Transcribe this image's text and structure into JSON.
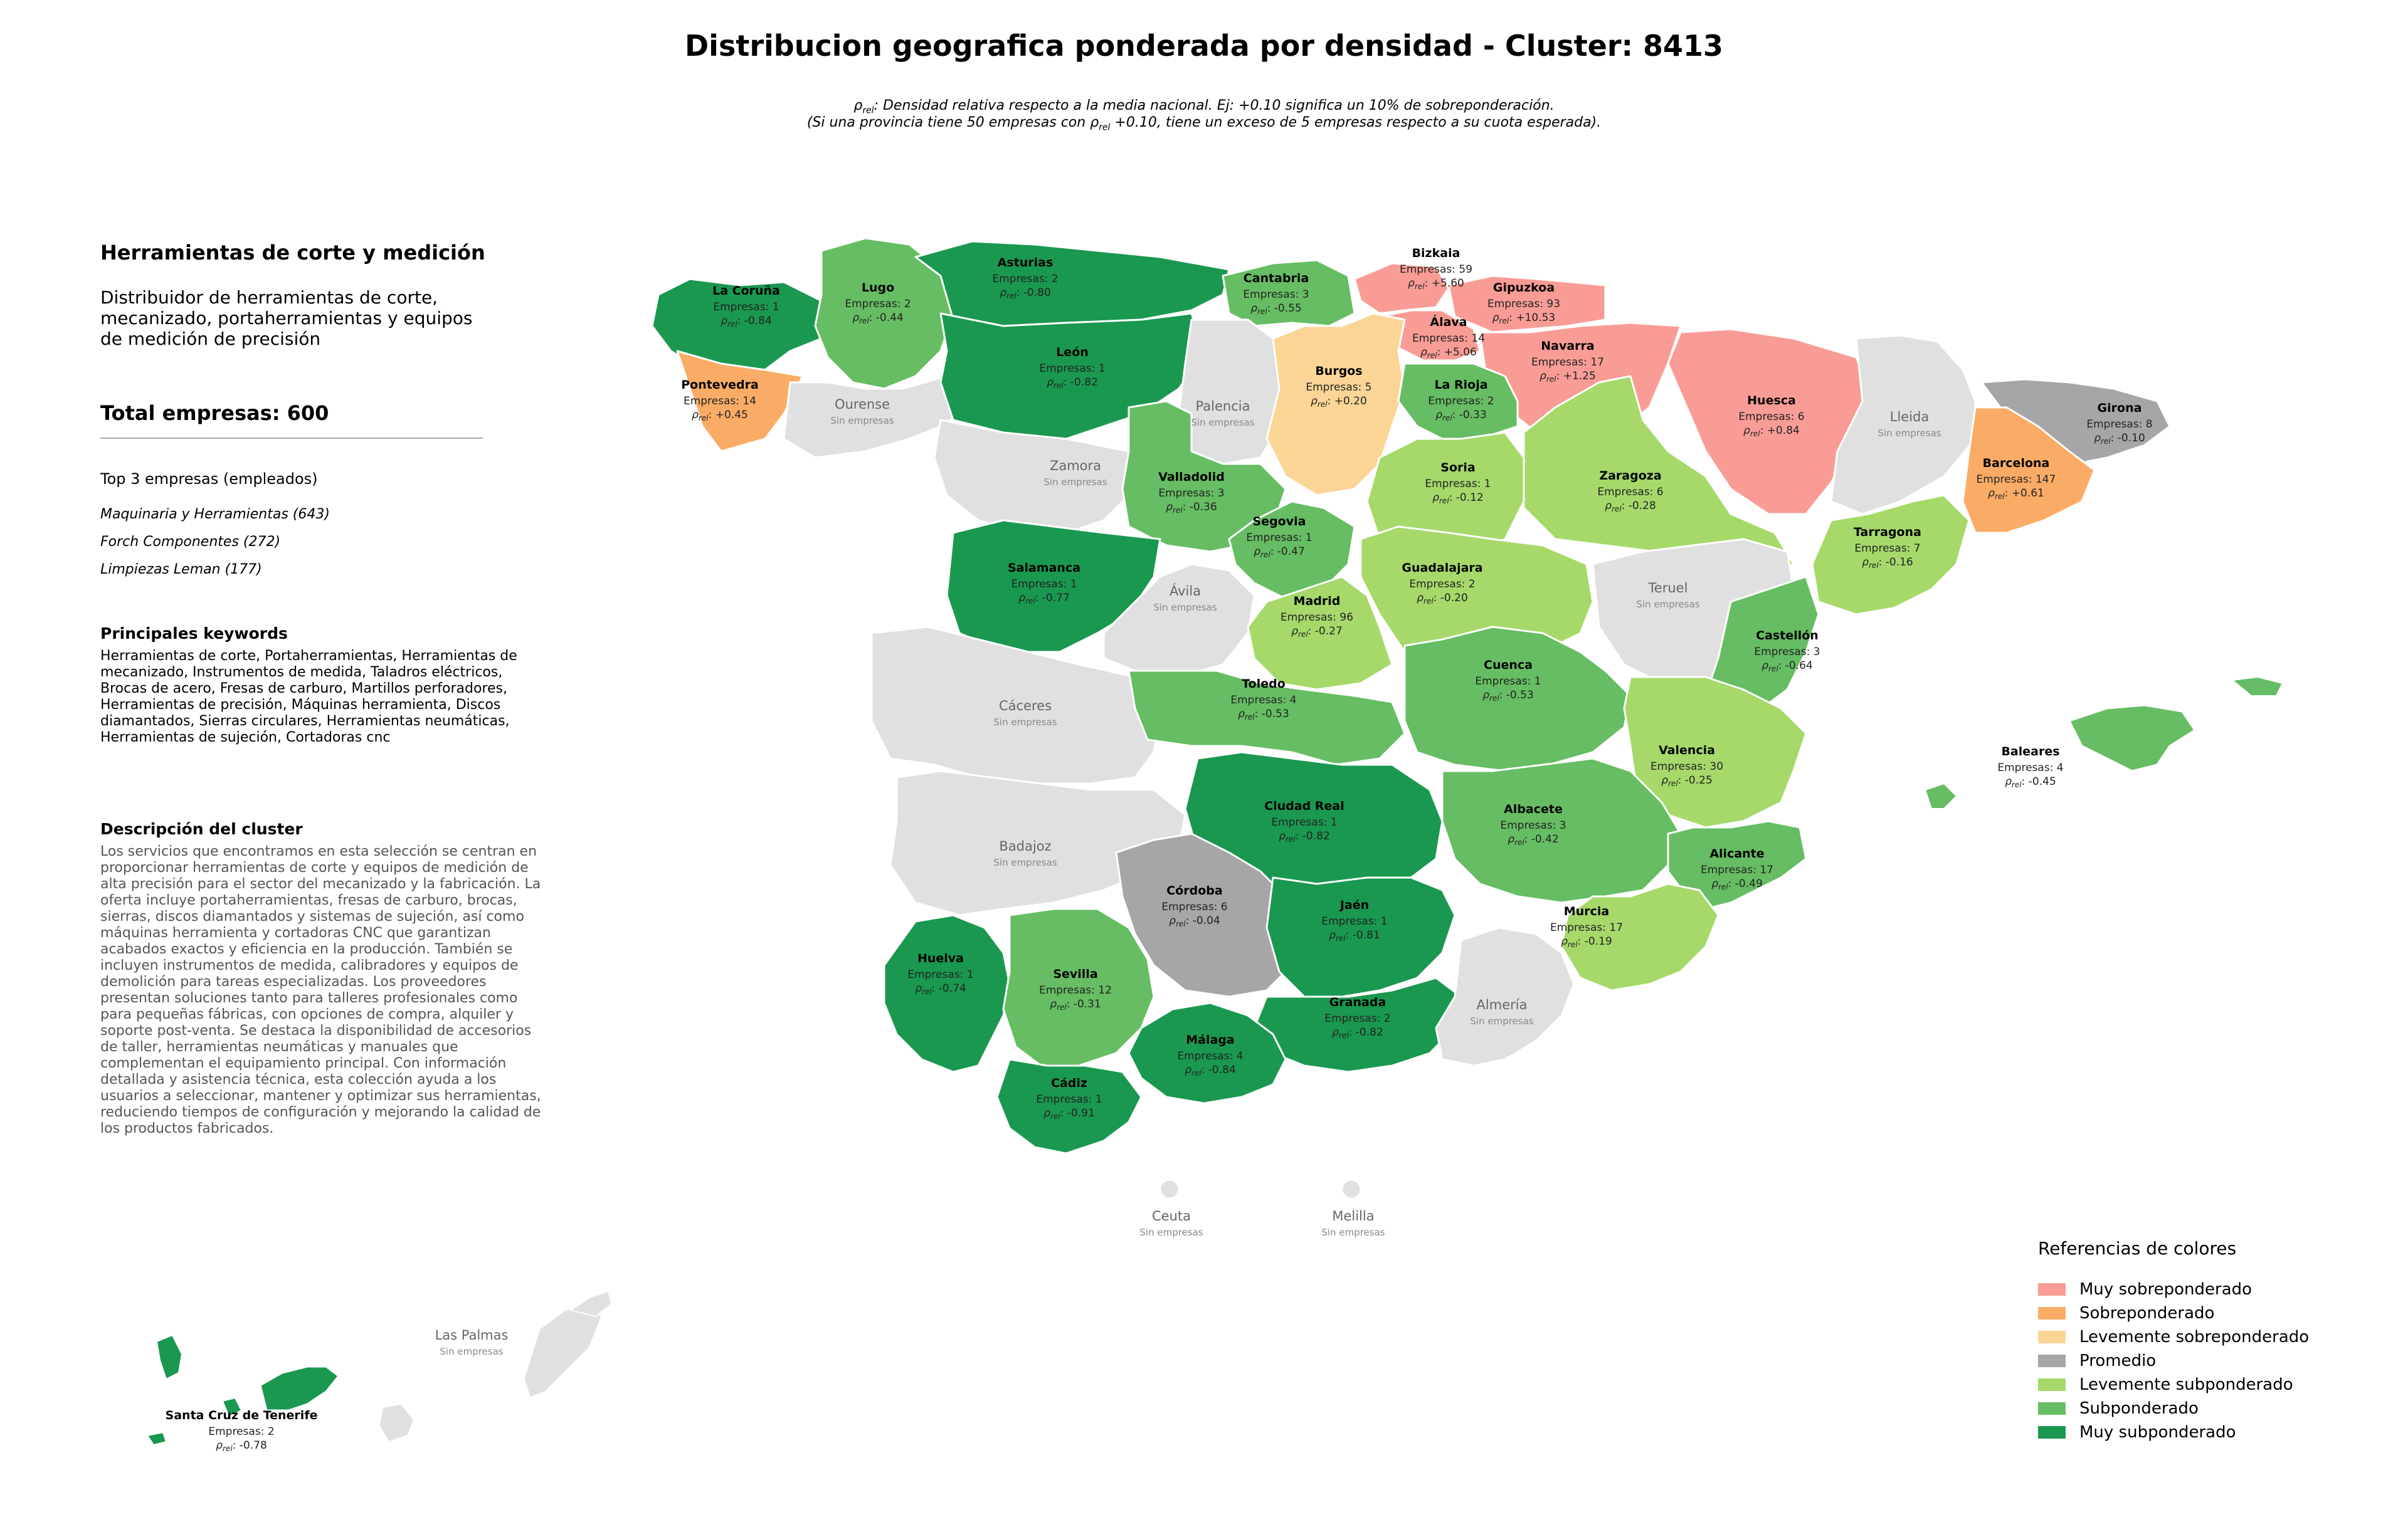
{
  "title": "Distribucion geografica ponderada por densidad - Cluster: 8413",
  "subtitle_line1": "ρrel: Densidad relativa respecto a la media nacional. Ej: +0.10 significa un 10% de sobreponderación.",
  "subtitle_line2": "(Si una provincia tiene 50 empresas con ρrel +0.10, tiene un exceso de 5 empresas respecto a su cuota esperada).",
  "sidebar": {
    "cluster_name": "Herramientas de corte y medición",
    "cluster_desc": "Distribuidor de herramientas de corte,\nmecanizado, portaherramientas y equipos\nde medición de precisión",
    "total": "Total empresas: 600",
    "top3_title": "Top 3 empresas (empleados)",
    "top3": [
      "Maquinaria y Herramientas (643)",
      "Forch Componentes (272)",
      "Limpiezas Leman (177)"
    ],
    "keywords_title": "Principales keywords",
    "keywords": "Herramientas de corte, Portaherramientas, Herramientas de mecanizado, Instrumentos de medida, Taladros eléctricos, Brocas de acero, Fresas de carburo, Martillos perforadores, Herramientas de precisión, Máquinas herramienta, Discos diamantados, Sierras circulares, Herramientas neumáticas, Herramientas de sujeción, Cortadoras cnc",
    "description_title": "Descripción del cluster",
    "description": "Los servicios que encontramos en esta selección se centran en proporcionar herramientas de corte y equipos de medición de alta precisión para el sector del mecanizado y la fabricación. La oferta incluye portaherramientas, fresas de carburo, brocas, sierras, discos diamantados y sistemas de sujeción, así como máquinas herramienta y cortadoras CNC que garantizan acabados exactos y eficiencia en la producción. También se incluyen instrumentos de medida, calibradores y equipos de demolición para tareas especializadas. Los proveedores presentan soluciones tanto para talleres profesionales como para pequeñas fábricas, con opciones de compra, alquiler y soporte post-venta. Se destaca la disponibilidad de accesorios de taller, herramientas neumáticas y manuales que complementan el equipamiento principal. Con información detallada y asistencia técnica, esta colección ayuda a los usuarios a seleccionar, mantener y optimizar sus herramientas, reduciendo tiempos de configuración y mejorando la calidad de los productos fabricados."
  },
  "colors": {
    "muy_sobre": "#f99c96",
    "sobre": "#faac66",
    "lev_sobre": "#fbd595",
    "promedio": "#a6a6a6",
    "lev_sub": "#a6d96a",
    "sub": "#66bd63",
    "muy_sub": "#1a9850",
    "sin": "#e0e0e0"
  },
  "legend": {
    "title": "Referencias de colores",
    "items": [
      {
        "label": "Muy sobreponderado",
        "color": "#f99c96"
      },
      {
        "label": "Sobreponderado",
        "color": "#faac66"
      },
      {
        "label": "Levemente sobreponderado",
        "color": "#fbd595"
      },
      {
        "label": "Promedio",
        "color": "#a6a6a6"
      },
      {
        "label": "Levemente subponderado",
        "color": "#a6d96a"
      },
      {
        "label": "Subponderado",
        "color": "#66bd63"
      },
      {
        "label": "Muy subponderado",
        "color": "#1a9850"
      }
    ]
  },
  "provinces": [
    {
      "name": "La Coruña",
      "empresas": "Empresas: 1",
      "rho": "-0.84",
      "category": "muy_sub"
    },
    {
      "name": "Lugo",
      "empresas": "Empresas: 2",
      "rho": "-0.44",
      "category": "sub"
    },
    {
      "name": "Asturias",
      "empresas": "Empresas: 2",
      "rho": "-0.80",
      "category": "muy_sub"
    },
    {
      "name": "Cantabria",
      "empresas": "Empresas: 3",
      "rho": "-0.55",
      "category": "sub"
    },
    {
      "name": "Bizkaia",
      "empresas": "Empresas: 59",
      "rho": "+5.60",
      "category": "muy_sobre"
    },
    {
      "name": "Gipuzkoa",
      "empresas": "Empresas: 93",
      "rho": "+10.53",
      "category": "muy_sobre"
    },
    {
      "name": "Álava",
      "empresas": "Empresas: 14",
      "rho": "+5.06",
      "category": "muy_sobre"
    },
    {
      "name": "Navarra",
      "empresas": "Empresas: 17",
      "rho": "+1.25",
      "category": "muy_sobre"
    },
    {
      "name": "Pontevedra",
      "empresas": "Empresas: 14",
      "rho": "+0.45",
      "category": "sobre"
    },
    {
      "name": "Ourense",
      "empty": true,
      "category": "sin"
    },
    {
      "name": "León",
      "empresas": "Empresas: 1",
      "rho": "-0.82",
      "category": "muy_sub"
    },
    {
      "name": "Palencia",
      "empty": true,
      "category": "sin"
    },
    {
      "name": "Burgos",
      "empresas": "Empresas: 5",
      "rho": "+0.20",
      "category": "lev_sobre"
    },
    {
      "name": "La Rioja",
      "empresas": "Empresas: 2",
      "rho": "-0.33",
      "category": "sub"
    },
    {
      "name": "Huesca",
      "empresas": "Empresas: 6",
      "rho": "+0.84",
      "category": "muy_sobre"
    },
    {
      "name": "Lleida",
      "empty": true,
      "category": "sin"
    },
    {
      "name": "Girona",
      "empresas": "Empresas: 8",
      "rho": "-0.10",
      "category": "promedio"
    },
    {
      "name": "Barcelona",
      "empresas": "Empresas: 147",
      "rho": "+0.61",
      "category": "sobre"
    },
    {
      "name": "Zamora",
      "empty": true,
      "category": "sin"
    },
    {
      "name": "Valladolid",
      "empresas": "Empresas: 3",
      "rho": "-0.36",
      "category": "sub"
    },
    {
      "name": "Soria",
      "empresas": "Empresas: 1",
      "rho": "-0.12",
      "category": "lev_sub"
    },
    {
      "name": "Zaragoza",
      "empresas": "Empresas: 6",
      "rho": "-0.28",
      "category": "lev_sub"
    },
    {
      "name": "Tarragona",
      "empresas": "Empresas: 7",
      "rho": "-0.16",
      "category": "lev_sub"
    },
    {
      "name": "Segovia",
      "empresas": "Empresas: 1",
      "rho": "-0.47",
      "category": "sub"
    },
    {
      "name": "Salamanca",
      "empresas": "Empresas: 1",
      "rho": "-0.77",
      "category": "muy_sub"
    },
    {
      "name": "Ávila",
      "empty": true,
      "category": "sin"
    },
    {
      "name": "Guadalajara",
      "empresas": "Empresas: 2",
      "rho": "-0.20",
      "category": "lev_sub"
    },
    {
      "name": "Madrid",
      "empresas": "Empresas: 96",
      "rho": "-0.27",
      "category": "lev_sub"
    },
    {
      "name": "Teruel",
      "empty": true,
      "category": "sin"
    },
    {
      "name": "Castellón",
      "empresas": "Empresas: 3",
      "rho": "-0.64",
      "category": "sub"
    },
    {
      "name": "Cáceres",
      "empty": true,
      "category": "sin"
    },
    {
      "name": "Toledo",
      "empresas": "Empresas: 4",
      "rho": "-0.53",
      "category": "sub"
    },
    {
      "name": "Cuenca",
      "empresas": "Empresas: 1",
      "rho": "-0.53",
      "category": "sub"
    },
    {
      "name": "Valencia",
      "empresas": "Empresas: 30",
      "rho": "-0.25",
      "category": "lev_sub"
    },
    {
      "name": "Baleares",
      "empresas": "Empresas: 4",
      "rho": "-0.45",
      "category": "sub"
    },
    {
      "name": "Badajoz",
      "empty": true,
      "category": "sin"
    },
    {
      "name": "Ciudad Real",
      "empresas": "Empresas: 1",
      "rho": "-0.82",
      "category": "muy_sub"
    },
    {
      "name": "Albacete",
      "empresas": "Empresas: 3",
      "rho": "-0.42",
      "category": "sub"
    },
    {
      "name": "Alicante",
      "empresas": "Empresas: 17",
      "rho": "-0.49",
      "category": "sub"
    },
    {
      "name": "Córdoba",
      "empresas": "Empresas: 6",
      "rho": "-0.04",
      "category": "promedio"
    },
    {
      "name": "Jaén",
      "empresas": "Empresas: 1",
      "rho": "-0.81",
      "category": "muy_sub"
    },
    {
      "name": "Murcia",
      "empresas": "Empresas: 17",
      "rho": "-0.19",
      "category": "lev_sub"
    },
    {
      "name": "Huelva",
      "empresas": "Empresas: 1",
      "rho": "-0.74",
      "category": "muy_sub"
    },
    {
      "name": "Sevilla",
      "empresas": "Empresas: 12",
      "rho": "-0.31",
      "category": "sub"
    },
    {
      "name": "Granada",
      "empresas": "Empresas: 2",
      "rho": "-0.82",
      "category": "muy_sub"
    },
    {
      "name": "Almería",
      "empty": true,
      "category": "sin"
    },
    {
      "name": "Málaga",
      "empresas": "Empresas: 4",
      "rho": "-0.84",
      "category": "muy_sub"
    },
    {
      "name": "Cádiz",
      "empresas": "Empresas: 1",
      "rho": "-0.91",
      "category": "muy_sub"
    },
    {
      "name": "Ceuta",
      "empty": true,
      "category": "sin"
    },
    {
      "name": "Melilla",
      "empty": true,
      "category": "sin"
    },
    {
      "name": "Las Palmas",
      "empty": true,
      "category": "sin"
    },
    {
      "name": "Santa Cruz de Tenerife",
      "empresas": "Empresas: 2",
      "rho": "-0.78",
      "category": "muy_sub"
    }
  ],
  "sin_empresas_label": "Sin empresas",
  "rho_symbol": "ρ",
  "rho_subscript": "rel"
}
